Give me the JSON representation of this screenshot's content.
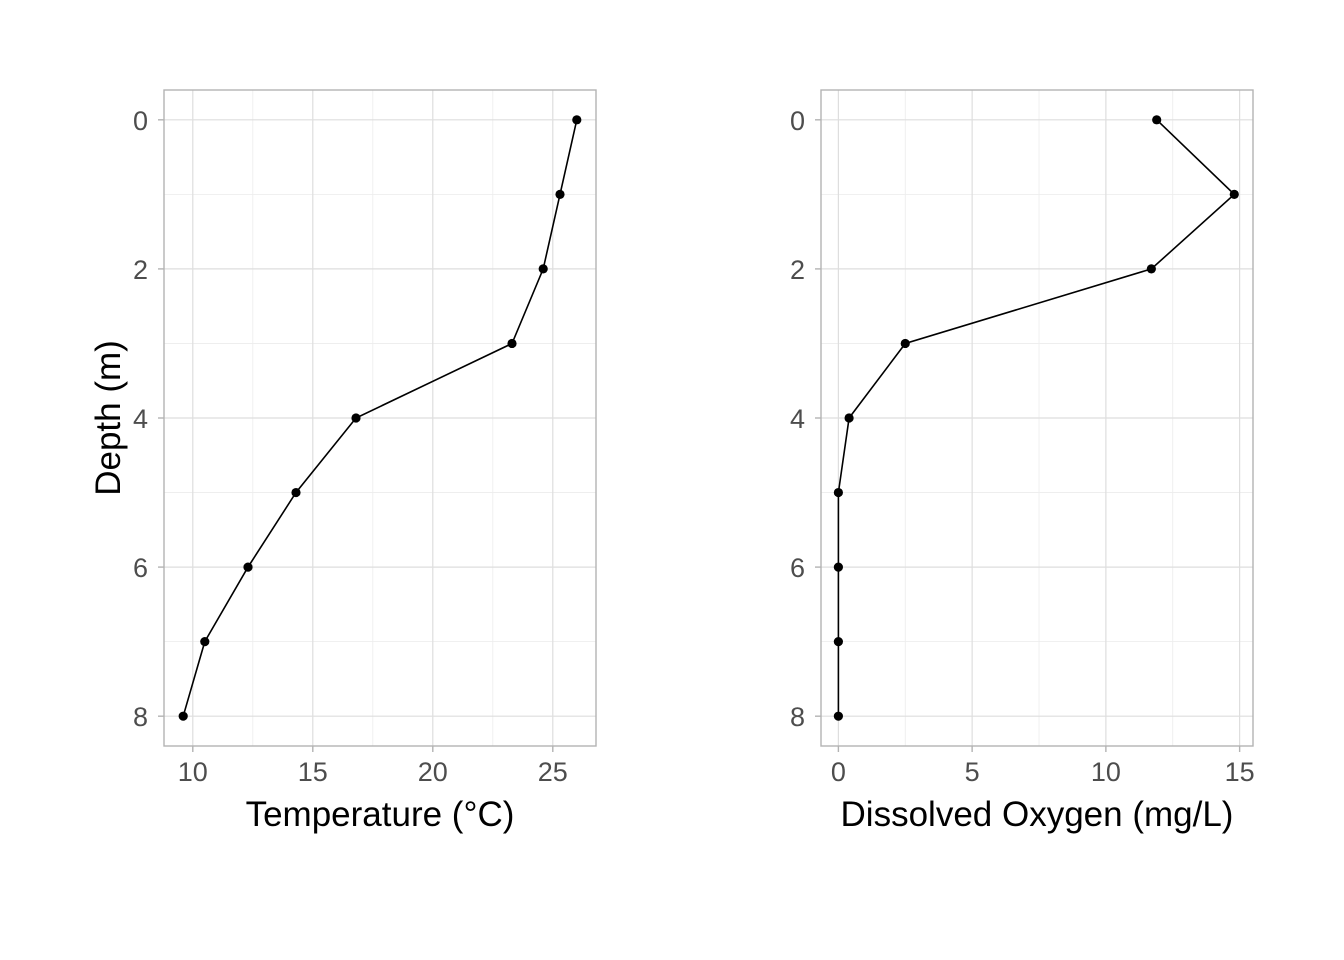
{
  "chart_data": [
    {
      "type": "line",
      "title": "",
      "xlabel": "Temperature (°C)",
      "ylabel": "Depth (m)",
      "x_ticks": [
        10,
        15,
        20,
        25
      ],
      "y_ticks": [
        0,
        2,
        4,
        6,
        8
      ],
      "xlim": [
        8.8,
        26.8
      ],
      "ylim": [
        -0.4,
        8.4
      ],
      "y_reversed": true,
      "grid": true,
      "series": [
        {
          "x": [
            26.0,
            25.3,
            24.6,
            23.3,
            16.8,
            14.3,
            12.3,
            10.5,
            9.6
          ],
          "y": [
            0,
            1,
            2,
            3,
            4,
            5,
            6,
            7,
            8
          ]
        }
      ]
    },
    {
      "type": "line",
      "title": "",
      "xlabel": "Dissolved Oxygen (mg/L)",
      "ylabel": "",
      "x_ticks": [
        0,
        5,
        10,
        15
      ],
      "y_ticks": [
        0,
        2,
        4,
        6,
        8
      ],
      "xlim": [
        -0.65,
        15.5
      ],
      "ylim": [
        -0.4,
        8.4
      ],
      "y_reversed": true,
      "grid": true,
      "series": [
        {
          "x": [
            11.9,
            14.8,
            11.7,
            2.5,
            0.4,
            0.0,
            0.0,
            0.0,
            0.0
          ],
          "y": [
            0,
            1,
            2,
            3,
            4,
            5,
            6,
            7,
            8
          ]
        }
      ]
    }
  ]
}
